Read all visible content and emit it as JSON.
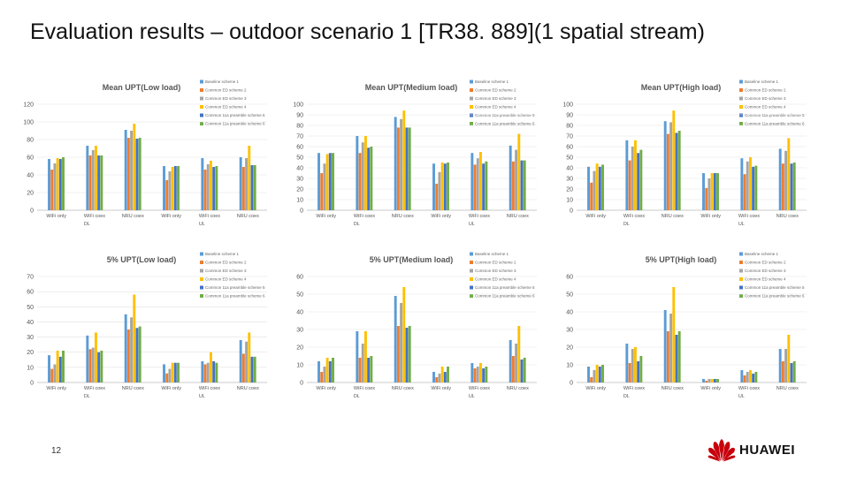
{
  "slide": {
    "title": "Evaluation results – outdoor scenario 1 [TR38. 889](1 spatial stream)",
    "page_number": "12",
    "logo_text": "HUAWEI"
  },
  "colors": [
    "#5b9bd5",
    "#ed7d31",
    "#a5a5a5",
    "#ffc000",
    "#4472c4",
    "#70ad47"
  ],
  "chart_data": [
    {
      "type": "bar",
      "title": "Mean UPT(Low load)",
      "categories": [
        "WiFi only",
        "WiFi coex",
        "NRU coex",
        "WiFi only",
        "WiFi coex",
        "NRU coex"
      ],
      "groups": [
        "DL",
        "UL"
      ],
      "ylim": [
        0,
        120
      ],
      "yticks": [
        0,
        20,
        40,
        60,
        80,
        100,
        120
      ],
      "legend": [
        "Baseline scheme 1",
        "Common ED scheme 2",
        "Common ED scheme 3",
        "Common ED scheme 4",
        "Common 11a preamble scheme 5",
        "Common 11a preamble scheme 6"
      ],
      "series": [
        {
          "name": "Baseline scheme 1",
          "values": [
            58,
            73,
            91,
            50,
            59,
            60
          ]
        },
        {
          "name": "Common ED scheme 2",
          "values": [
            46,
            62,
            82,
            34,
            46,
            49
          ]
        },
        {
          "name": "Common ED scheme 3",
          "values": [
            53,
            68,
            90,
            44,
            52,
            59
          ]
        },
        {
          "name": "Common ED scheme 4",
          "values": [
            59,
            73,
            98,
            49,
            56,
            73
          ]
        },
        {
          "name": "Common 11a preamble scheme 5",
          "values": [
            58,
            62,
            81,
            50,
            49,
            51
          ]
        },
        {
          "name": "Common 11a preamble scheme 6",
          "values": [
            60,
            62,
            82,
            50,
            50,
            51
          ]
        }
      ]
    },
    {
      "type": "bar",
      "title": "Mean UPT(Medium load)",
      "categories": [
        "WiFi only",
        "WiFi coex",
        "NRU coex",
        "WiFi only",
        "WiFi coex",
        "NRU coex"
      ],
      "groups": [
        "DL",
        "UL"
      ],
      "ylim": [
        0,
        100
      ],
      "yticks": [
        0,
        10,
        20,
        30,
        40,
        50,
        60,
        70,
        80,
        90,
        100
      ],
      "legend": [
        "Baseline scheme 1",
        "Common ED scheme 2",
        "Common ED scheme 3",
        "Common ED scheme 4",
        "Common 11a preamble scheme 5",
        "Common 11a preamble scheme 6"
      ],
      "series": [
        {
          "name": "Baseline scheme 1",
          "values": [
            54,
            70,
            88,
            44,
            54,
            61
          ]
        },
        {
          "name": "Common ED scheme 2",
          "values": [
            35,
            54,
            78,
            25,
            43,
            46
          ]
        },
        {
          "name": "Common ED scheme 3",
          "values": [
            44,
            64,
            86,
            36,
            49,
            57
          ]
        },
        {
          "name": "Common ED scheme 4",
          "values": [
            53,
            70,
            94,
            45,
            55,
            72
          ]
        },
        {
          "name": "Common 11a preamble scheme 5",
          "values": [
            54,
            59,
            78,
            44,
            44,
            47
          ]
        },
        {
          "name": "Common 11a preamble scheme 6",
          "values": [
            54,
            60,
            78,
            45,
            46,
            47
          ]
        }
      ]
    },
    {
      "type": "bar",
      "title": "Mean UPT(High load)",
      "categories": [
        "WiFi only",
        "WiFi coex",
        "NRU coex",
        "WiFi only",
        "WiFi coex",
        "NRU coex"
      ],
      "groups": [
        "DL",
        "UL"
      ],
      "ylim": [
        0,
        100
      ],
      "yticks": [
        0,
        10,
        20,
        30,
        40,
        50,
        60,
        70,
        80,
        90,
        100
      ],
      "legend": [
        "Baseline scheme 1",
        "Common ED scheme 2",
        "Common ED scheme 3",
        "Common ED scheme 4",
        "Common 11a preamble scheme 5",
        "Common 11a preamble scheme 6"
      ],
      "series": [
        {
          "name": "Baseline scheme 1",
          "values": [
            41,
            66,
            84,
            35,
            49,
            58
          ]
        },
        {
          "name": "Common ED scheme 2",
          "values": [
            26,
            47,
            72,
            21,
            34,
            44
          ]
        },
        {
          "name": "Common ED scheme 3",
          "values": [
            37,
            60,
            83,
            30,
            46,
            56
          ]
        },
        {
          "name": "Common ED scheme 4",
          "values": [
            44,
            66,
            94,
            35,
            50,
            68
          ]
        },
        {
          "name": "Common 11a preamble scheme 5",
          "values": [
            41,
            54,
            73,
            35,
            41,
            44
          ]
        },
        {
          "name": "Common 11a preamble scheme 6",
          "values": [
            43,
            57,
            75,
            35,
            42,
            45
          ]
        }
      ]
    },
    {
      "type": "bar",
      "title": "5% UPT(Low load)",
      "categories": [
        "WiFi only",
        "WiFi coex",
        "NRU coex",
        "WiFi only",
        "WiFi coex",
        "NRU coex"
      ],
      "groups": [
        "DL",
        "UL"
      ],
      "ylim": [
        0,
        70
      ],
      "yticks": [
        0,
        10,
        20,
        30,
        40,
        50,
        60,
        70
      ],
      "legend": [
        "Baseline scheme 1",
        "Common ED scheme 2",
        "Common ED scheme 3",
        "Common ED scheme 4",
        "Common 11a preamble scheme 5",
        "Common 11a preamble scheme 6"
      ],
      "series": [
        {
          "name": "Baseline scheme 1",
          "values": [
            18,
            31,
            45,
            12,
            14,
            28
          ]
        },
        {
          "name": "Common ED scheme 2",
          "values": [
            9,
            22,
            35,
            6,
            12,
            19
          ]
        },
        {
          "name": "Common ED scheme 3",
          "values": [
            12,
            23,
            43,
            9,
            13,
            27
          ]
        },
        {
          "name": "Common ED scheme 4",
          "values": [
            21,
            33,
            58,
            13,
            20,
            33
          ]
        },
        {
          "name": "Common 11a preamble scheme 5",
          "values": [
            17,
            20,
            36,
            13,
            14,
            17
          ]
        },
        {
          "name": "Common 11a preamble scheme 6",
          "values": [
            21,
            21,
            37,
            13,
            13,
            17
          ]
        }
      ]
    },
    {
      "type": "bar",
      "title": "5% UPT(Medium load)",
      "categories": [
        "WiFi only",
        "WiFi coex",
        "NRU coex",
        "WiFi only",
        "WiFi coex",
        "NRU coex"
      ],
      "groups": [
        "DL",
        "UL"
      ],
      "ylim": [
        0,
        60
      ],
      "yticks": [
        0,
        10,
        20,
        30,
        40,
        50,
        60
      ],
      "legend": [
        "Baseline scheme 1",
        "Common ED scheme 2",
        "Common ED scheme 3",
        "Common ED scheme 4",
        "Common 11a preamble scheme 5",
        "Common 11a preamble scheme 6"
      ],
      "series": [
        {
          "name": "Baseline scheme 1",
          "values": [
            12,
            29,
            49,
            6,
            11,
            24
          ]
        },
        {
          "name": "Common ED scheme 2",
          "values": [
            6,
            14,
            32,
            3,
            8,
            15
          ]
        },
        {
          "name": "Common ED scheme 3",
          "values": [
            9,
            22,
            45,
            5,
            9,
            22
          ]
        },
        {
          "name": "Common ED scheme 4",
          "values": [
            14,
            29,
            54,
            9,
            11,
            32
          ]
        },
        {
          "name": "Common 11a preamble scheme 5",
          "values": [
            12,
            14,
            31,
            6,
            8,
            13
          ]
        },
        {
          "name": "Common 11a preamble scheme 6",
          "values": [
            14,
            15,
            32,
            9,
            9,
            14
          ]
        }
      ]
    },
    {
      "type": "bar",
      "title": "5% UPT(High load)",
      "categories": [
        "WiFi only",
        "WiFi coex",
        "NRU coex",
        "WiFi only",
        "WiFi coex",
        "NRU coex"
      ],
      "groups": [
        "DL",
        "UL"
      ],
      "ylim": [
        0,
        60
      ],
      "yticks": [
        0,
        10,
        20,
        30,
        40,
        50,
        60
      ],
      "legend": [
        "Baseline scheme 1",
        "Common ED scheme 2",
        "Common ED scheme 3",
        "Common ED scheme 4",
        "Common 11a preamble scheme 5",
        "Common 11a preamble scheme 6"
      ],
      "series": [
        {
          "name": "Baseline scheme 1",
          "values": [
            9,
            22,
            41,
            2,
            7,
            19
          ]
        },
        {
          "name": "Common ED scheme 2",
          "values": [
            3,
            11,
            29,
            1,
            4,
            12
          ]
        },
        {
          "name": "Common ED scheme 3",
          "values": [
            7,
            19,
            39,
            2,
            6,
            19
          ]
        },
        {
          "name": "Common ED scheme 4",
          "values": [
            10,
            20,
            54,
            2,
            7,
            27
          ]
        },
        {
          "name": "Common 11a preamble scheme 5",
          "values": [
            9,
            12,
            27,
            2,
            5,
            11
          ]
        },
        {
          "name": "Common 11a preamble scheme 6",
          "values": [
            10,
            15,
            29,
            2,
            6,
            12
          ]
        }
      ]
    }
  ]
}
